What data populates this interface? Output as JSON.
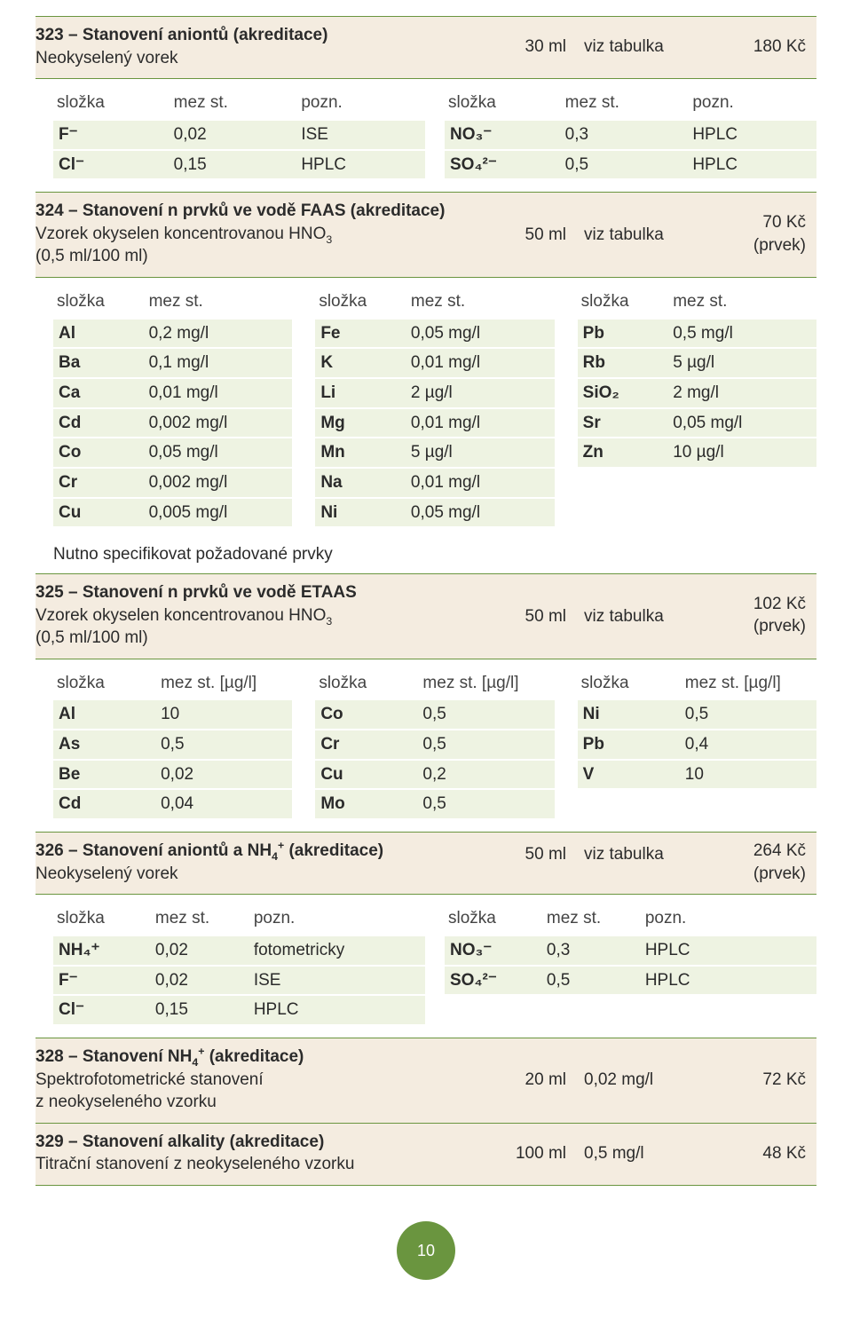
{
  "colors": {
    "header_bg": "#f4ece0",
    "header_border": "#6a953f",
    "row_bg": "#eef3e2",
    "page_bg": "#ffffff",
    "text": "#2b2b2b",
    "badge_bg": "#6a953f"
  },
  "page_number": "10",
  "s323": {
    "title_bold": "323 – Stanovení aniontů (akreditace)",
    "subtitle": "Neokyselený vorek",
    "vol": "30 ml",
    "ref": "viz tabulka",
    "price": "180 Kč",
    "left_head": {
      "c1": "složka",
      "c2": "mez st.",
      "c3": "pozn."
    },
    "right_head": {
      "c1": "složka",
      "c2": "mez st.",
      "c3": "pozn."
    },
    "left_rows": [
      {
        "c1": "F⁻",
        "c2": "0,02",
        "c3": "ISE"
      },
      {
        "c1": "Cl⁻",
        "c2": "0,15",
        "c3": "HPLC"
      }
    ],
    "right_rows": [
      {
        "c1": "NO₃⁻",
        "c2": "0,3",
        "c3": "HPLC"
      },
      {
        "c1": "SO₄²⁻",
        "c2": "0,5",
        "c3": "HPLC"
      }
    ]
  },
  "s324": {
    "title_bold": "324 – Stanovení n prvků ve vodě FAAS (akreditace)",
    "subtitle_pre": "Vzorek okyselen koncentrovanou HNO",
    "subtitle_sub": "3",
    "subtitle_post": "(0,5 ml/100 ml)",
    "vol": "50 ml",
    "ref": "viz tabulka",
    "price": "70 Kč",
    "price_sub": "(prvek)",
    "head": {
      "c1": "složka",
      "c2": "mez st."
    },
    "col1": [
      {
        "c1": "Al",
        "c2": "0,2 mg/l"
      },
      {
        "c1": "Ba",
        "c2": "0,1 mg/l"
      },
      {
        "c1": "Ca",
        "c2": "0,01 mg/l"
      },
      {
        "c1": "Cd",
        "c2": "0,002 mg/l"
      },
      {
        "c1": "Co",
        "c2": "0,05 mg/l"
      },
      {
        "c1": "Cr",
        "c2": "0,002 mg/l"
      },
      {
        "c1": "Cu",
        "c2": "0,005 mg/l"
      }
    ],
    "col2": [
      {
        "c1": "Fe",
        "c2": "0,05 mg/l"
      },
      {
        "c1": "K",
        "c2": "0,01 mg/l"
      },
      {
        "c1": "Li",
        "c2": "2 µg/l"
      },
      {
        "c1": "Mg",
        "c2": "0,01 mg/l"
      },
      {
        "c1": "Mn",
        "c2": "5 µg/l"
      },
      {
        "c1": "Na",
        "c2": "0,01 mg/l"
      },
      {
        "c1": "Ni",
        "c2": "0,05 mg/l"
      }
    ],
    "col3": [
      {
        "c1": "Pb",
        "c2": "0,5 mg/l"
      },
      {
        "c1": "Rb",
        "c2": "5 µg/l"
      },
      {
        "c1": "SiO₂",
        "c2": "2 mg/l"
      },
      {
        "c1": "Sr",
        "c2": "0,05 mg/l"
      },
      {
        "c1": "Zn",
        "c2": "10 µg/l"
      }
    ],
    "note": "Nutno specifikovat požadované prvky"
  },
  "s325": {
    "title_bold": "325 – Stanovení n prvků ve vodě ETAAS",
    "subtitle_pre": "Vzorek okyselen koncentrovanou HNO",
    "subtitle_sub": "3",
    "subtitle_post": "(0,5 ml/100 ml)",
    "vol": "50 ml",
    "ref": "viz tabulka",
    "price": "102 Kč",
    "price_sub": "(prvek)",
    "head": {
      "c1": "složka",
      "c2": "mez st. [µg/l]"
    },
    "col1": [
      {
        "c1": "Al",
        "c2": "10"
      },
      {
        "c1": "As",
        "c2": "0,5"
      },
      {
        "c1": "Be",
        "c2": "0,02"
      },
      {
        "c1": "Cd",
        "c2": "0,04"
      }
    ],
    "col2": [
      {
        "c1": "Co",
        "c2": "0,5"
      },
      {
        "c1": "Cr",
        "c2": "0,5"
      },
      {
        "c1": "Cu",
        "c2": "0,2"
      },
      {
        "c1": "Mo",
        "c2": "0,5"
      }
    ],
    "col3": [
      {
        "c1": "Ni",
        "c2": "0,5"
      },
      {
        "c1": "Pb",
        "c2": "0,4"
      },
      {
        "c1": "V",
        "c2": "10"
      }
    ]
  },
  "s326": {
    "title_bold_pre": "326 – Stanovení aniontů a NH",
    "title_bold_sub": "4",
    "title_bold_sup": "+",
    "title_bold_post": " (akreditace)",
    "subtitle": "Neokyselený vorek",
    "vol": "50 ml",
    "ref": "viz tabulka",
    "price": "264 Kč",
    "price_sub": "(prvek)",
    "head": {
      "c1": "složka",
      "c2": "mez st.",
      "c3": "pozn."
    },
    "left_rows": [
      {
        "c1": "NH₄⁺",
        "c2": "0,02",
        "c3": "fotometricky"
      },
      {
        "c1": "F⁻",
        "c2": "0,02",
        "c3": "ISE"
      },
      {
        "c1": "Cl⁻",
        "c2": "0,15",
        "c3": "HPLC"
      }
    ],
    "right_rows": [
      {
        "c1": "NO₃⁻",
        "c2": "0,3",
        "c3": "HPLC"
      },
      {
        "c1": "SO₄²⁻",
        "c2": "0,5",
        "c3": "HPLC"
      }
    ]
  },
  "s328": {
    "title_bold_pre": "328 – Stanovení NH",
    "title_bold_sub": "4",
    "title_bold_sup": "+",
    "title_bold_post": " (akreditace)",
    "subtitle1": "Spektrofotometrické stanovení",
    "subtitle2": "z neokyseleného vzorku",
    "vol": "20 ml",
    "ref": "0,02 mg/l",
    "price": "72 Kč"
  },
  "s329": {
    "title_bold": "329 – Stanovení alkality (akreditace)",
    "subtitle": "Titrační stanovení z neokyseleného vzorku",
    "vol": "100 ml",
    "ref": "0,5 mg/l",
    "price": "48 Kč"
  }
}
